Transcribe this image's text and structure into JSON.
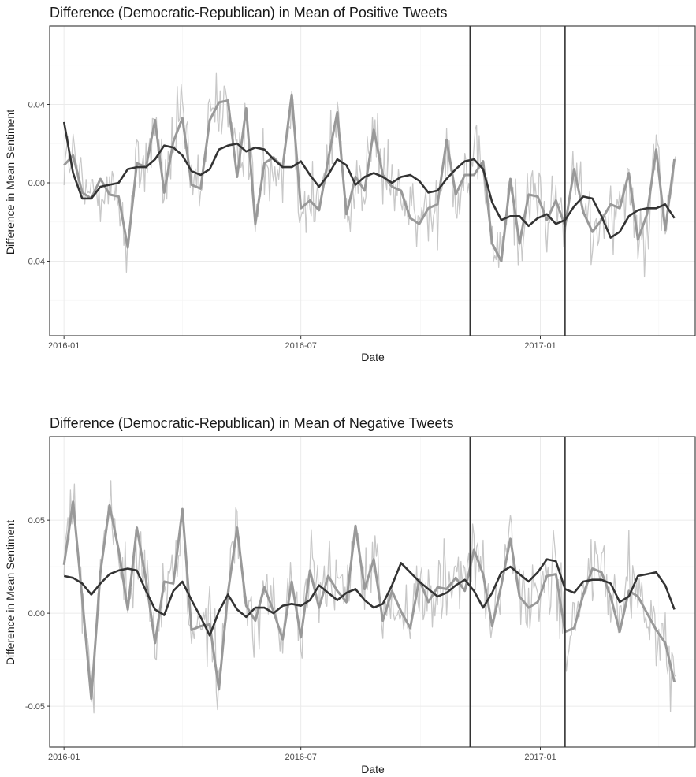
{
  "colors": {
    "daily": "#c8c8c8",
    "weekly": "#999999",
    "smooth": "#333333",
    "grid": "#ebebeb",
    "border": "#333333"
  },
  "chart_data": [
    {
      "type": "line",
      "title": "Difference (Democratic-Republican) in Mean of Positive Tweets",
      "xlabel": "Date",
      "ylabel": "Difference in Mean Sentiment",
      "xlim": [
        "2015-12-21",
        "2017-04-30"
      ],
      "ylim": [
        -0.078,
        0.08
      ],
      "x_ticks": [
        "2016-01-01",
        "2016-07-01",
        "2017-01-01"
      ],
      "x_tick_labels": [
        "2016-01",
        "2016-07",
        "2017-01"
      ],
      "y_ticks": [
        -0.04,
        0.0,
        0.04
      ],
      "y_tick_labels": [
        "-0.04",
        "0.00",
        "0.04"
      ],
      "vlines": [
        "2016-11-08",
        "2017-01-20"
      ],
      "grid": true,
      "series": [
        {
          "style": "daily",
          "start": "2016-01-01",
          "end": "2017-04-15",
          "y_range": [
            -0.07,
            0.072
          ]
        },
        {
          "style": "weekly",
          "x": [
            "2016-01-01",
            "2016-01-08",
            "2016-01-15",
            "2016-01-22",
            "2016-01-29",
            "2016-02-05",
            "2016-02-12",
            "2016-02-19",
            "2016-02-26",
            "2016-03-04",
            "2016-03-11",
            "2016-03-18",
            "2016-03-25",
            "2016-04-01",
            "2016-04-08",
            "2016-04-15",
            "2016-04-22",
            "2016-04-29",
            "2016-05-06",
            "2016-05-13",
            "2016-05-20",
            "2016-05-27",
            "2016-06-03",
            "2016-06-10",
            "2016-06-17",
            "2016-06-24",
            "2016-07-01",
            "2016-07-08",
            "2016-07-15",
            "2016-07-22",
            "2016-07-29",
            "2016-08-05",
            "2016-08-12",
            "2016-08-19",
            "2016-08-26",
            "2016-09-02",
            "2016-09-09",
            "2016-09-16",
            "2016-09-23",
            "2016-09-30",
            "2016-10-07",
            "2016-10-14",
            "2016-10-21",
            "2016-10-28",
            "2016-11-04",
            "2016-11-11",
            "2016-11-18",
            "2016-11-25",
            "2016-12-02",
            "2016-12-09",
            "2016-12-16",
            "2016-12-23",
            "2016-12-30",
            "2017-01-06",
            "2017-01-13",
            "2017-01-20",
            "2017-01-27",
            "2017-02-03",
            "2017-02-10",
            "2017-02-17",
            "2017-02-24",
            "2017-03-03",
            "2017-03-10",
            "2017-03-17",
            "2017-03-24",
            "2017-03-31",
            "2017-04-07",
            "2017-04-14"
          ],
          "y": [
            0.009,
            0.014,
            -0.005,
            -0.008,
            0.002,
            -0.006,
            -0.007,
            -0.033,
            0.01,
            0.008,
            0.032,
            -0.005,
            0.021,
            0.033,
            -0.001,
            -0.003,
            0.032,
            0.041,
            0.042,
            0.003,
            0.038,
            -0.021,
            0.01,
            0.013,
            0.008,
            0.045,
            -0.013,
            -0.009,
            -0.014,
            0.012,
            0.036,
            -0.016,
            0.003,
            -0.004,
            0.027,
            0.004,
            -0.002,
            -0.004,
            -0.018,
            -0.021,
            -0.013,
            -0.011,
            0.022,
            -0.006,
            0.004,
            0.004,
            0.011,
            -0.031,
            -0.04,
            0.002,
            -0.031,
            -0.006,
            -0.007,
            -0.019,
            -0.009,
            -0.022,
            0.007,
            -0.015,
            -0.025,
            -0.019,
            -0.011,
            -0.013,
            0.005,
            -0.029,
            -0.016,
            0.017,
            -0.024,
            0.012
          ]
        },
        {
          "style": "smooth",
          "x": [
            "2016-01-01",
            "2016-01-08",
            "2016-01-15",
            "2016-01-22",
            "2016-01-29",
            "2016-02-05",
            "2016-02-12",
            "2016-02-19",
            "2016-02-26",
            "2016-03-04",
            "2016-03-11",
            "2016-03-18",
            "2016-03-25",
            "2016-04-01",
            "2016-04-08",
            "2016-04-15",
            "2016-04-22",
            "2016-04-29",
            "2016-05-06",
            "2016-05-13",
            "2016-05-20",
            "2016-05-27",
            "2016-06-03",
            "2016-06-10",
            "2016-06-17",
            "2016-06-24",
            "2016-07-01",
            "2016-07-08",
            "2016-07-15",
            "2016-07-22",
            "2016-07-29",
            "2016-08-05",
            "2016-08-12",
            "2016-08-19",
            "2016-08-26",
            "2016-09-02",
            "2016-09-09",
            "2016-09-16",
            "2016-09-23",
            "2016-09-30",
            "2016-10-07",
            "2016-10-14",
            "2016-10-21",
            "2016-10-28",
            "2016-11-04",
            "2016-11-11",
            "2016-11-18",
            "2016-11-25",
            "2016-12-02",
            "2016-12-09",
            "2016-12-16",
            "2016-12-23",
            "2016-12-30",
            "2017-01-06",
            "2017-01-13",
            "2017-01-20",
            "2017-01-27",
            "2017-02-03",
            "2017-02-10",
            "2017-02-17",
            "2017-02-24",
            "2017-03-03",
            "2017-03-10",
            "2017-03-17",
            "2017-03-24",
            "2017-03-31",
            "2017-04-07",
            "2017-04-14"
          ],
          "y": [
            0.031,
            0.005,
            -0.008,
            -0.008,
            -0.002,
            -0.001,
            0.0,
            0.007,
            0.008,
            0.008,
            0.012,
            0.019,
            0.018,
            0.014,
            0.006,
            0.004,
            0.007,
            0.017,
            0.019,
            0.02,
            0.016,
            0.018,
            0.017,
            0.012,
            0.008,
            0.008,
            0.011,
            0.004,
            -0.002,
            0.004,
            0.012,
            0.009,
            -0.001,
            0.003,
            0.005,
            0.003,
            0.0,
            0.003,
            0.004,
            0.001,
            -0.005,
            -0.004,
            0.002,
            0.007,
            0.011,
            0.012,
            0.007,
            -0.01,
            -0.019,
            -0.017,
            -0.017,
            -0.022,
            -0.018,
            -0.016,
            -0.021,
            -0.019,
            -0.012,
            -0.007,
            -0.008,
            -0.017,
            -0.028,
            -0.025,
            -0.017,
            -0.014,
            -0.013,
            -0.013,
            -0.011,
            -0.018
          ]
        }
      ]
    },
    {
      "type": "line",
      "title": "Difference (Democratic-Republican) in Mean of Negative Tweets",
      "xlabel": "Date",
      "ylabel": "Difference in Mean Sentiment",
      "xlim": [
        "2015-12-21",
        "2017-04-30"
      ],
      "ylim": [
        -0.072,
        0.095
      ],
      "x_ticks": [
        "2016-01-01",
        "2016-07-01",
        "2017-01-01"
      ],
      "x_tick_labels": [
        "2016-01",
        "2016-07",
        "2017-01"
      ],
      "y_ticks": [
        -0.05,
        0.0,
        0.05
      ],
      "y_tick_labels": [
        "-0.05",
        "0.00",
        "0.05"
      ],
      "vlines": [
        "2016-11-08",
        "2017-01-20"
      ],
      "grid": true,
      "series": [
        {
          "style": "daily",
          "start": "2016-01-01",
          "end": "2017-04-15",
          "y_range": [
            -0.066,
            0.087
          ]
        },
        {
          "style": "weekly",
          "x": [
            "2016-01-01",
            "2016-01-08",
            "2016-01-15",
            "2016-01-22",
            "2016-01-29",
            "2016-02-05",
            "2016-02-12",
            "2016-02-19",
            "2016-02-26",
            "2016-03-04",
            "2016-03-11",
            "2016-03-18",
            "2016-03-25",
            "2016-04-01",
            "2016-04-08",
            "2016-04-15",
            "2016-04-22",
            "2016-04-29",
            "2016-05-06",
            "2016-05-13",
            "2016-05-20",
            "2016-05-27",
            "2016-06-03",
            "2016-06-10",
            "2016-06-17",
            "2016-06-24",
            "2016-07-01",
            "2016-07-08",
            "2016-07-15",
            "2016-07-22",
            "2016-07-29",
            "2016-08-05",
            "2016-08-12",
            "2016-08-19",
            "2016-08-26",
            "2016-09-02",
            "2016-09-09",
            "2016-09-16",
            "2016-09-23",
            "2016-09-30",
            "2016-10-07",
            "2016-10-14",
            "2016-10-21",
            "2016-10-28",
            "2016-11-04",
            "2016-11-11",
            "2016-11-18",
            "2016-11-25",
            "2016-12-02",
            "2016-12-09",
            "2016-12-16",
            "2016-12-23",
            "2016-12-30",
            "2017-01-06",
            "2017-01-13",
            "2017-01-20",
            "2017-01-27",
            "2017-02-03",
            "2017-02-10",
            "2017-02-17",
            "2017-02-24",
            "2017-03-03",
            "2017-03-10",
            "2017-03-17",
            "2017-03-24",
            "2017-03-31",
            "2017-04-07",
            "2017-04-14"
          ],
          "y": [
            0.026,
            0.06,
            0.008,
            -0.046,
            0.022,
            0.058,
            0.034,
            0.002,
            0.046,
            0.018,
            -0.016,
            0.017,
            0.016,
            0.056,
            -0.009,
            -0.007,
            -0.006,
            -0.041,
            0.011,
            0.046,
            0.004,
            -0.004,
            0.014,
            0.001,
            -0.014,
            0.017,
            -0.013,
            0.023,
            0.003,
            0.02,
            0.012,
            0.006,
            0.047,
            0.013,
            0.029,
            -0.004,
            0.012,
            0.001,
            -0.008,
            0.018,
            0.006,
            0.014,
            0.013,
            0.019,
            0.012,
            0.034,
            0.021,
            -0.007,
            0.015,
            0.04,
            0.009,
            0.003,
            0.006,
            0.02,
            0.021,
            -0.01,
            -0.008,
            0.01,
            0.024,
            0.022,
            0.009,
            -0.01,
            0.012,
            0.009,
            0.0,
            -0.009,
            -0.016,
            -0.037
          ]
        },
        {
          "style": "smooth",
          "x": [
            "2016-01-01",
            "2016-01-08",
            "2016-01-15",
            "2016-01-22",
            "2016-01-29",
            "2016-02-05",
            "2016-02-12",
            "2016-02-19",
            "2016-02-26",
            "2016-03-04",
            "2016-03-11",
            "2016-03-18",
            "2016-03-25",
            "2016-04-01",
            "2016-04-08",
            "2016-04-15",
            "2016-04-22",
            "2016-04-29",
            "2016-05-06",
            "2016-05-13",
            "2016-05-20",
            "2016-05-27",
            "2016-06-03",
            "2016-06-10",
            "2016-06-17",
            "2016-06-24",
            "2016-07-01",
            "2016-07-08",
            "2016-07-15",
            "2016-07-22",
            "2016-07-29",
            "2016-08-05",
            "2016-08-12",
            "2016-08-19",
            "2016-08-26",
            "2016-09-02",
            "2016-09-09",
            "2016-09-16",
            "2016-09-23",
            "2016-09-30",
            "2016-10-07",
            "2016-10-14",
            "2016-10-21",
            "2016-10-28",
            "2016-11-04",
            "2016-11-11",
            "2016-11-18",
            "2016-11-25",
            "2016-12-02",
            "2016-12-09",
            "2016-12-16",
            "2016-12-23",
            "2016-12-30",
            "2017-01-06",
            "2017-01-13",
            "2017-01-20",
            "2017-01-27",
            "2017-02-03",
            "2017-02-10",
            "2017-02-17",
            "2017-02-24",
            "2017-03-03",
            "2017-03-10",
            "2017-03-17",
            "2017-03-24",
            "2017-03-31",
            "2017-04-07",
            "2017-04-14"
          ],
          "y": [
            0.02,
            0.019,
            0.016,
            0.01,
            0.016,
            0.021,
            0.023,
            0.024,
            0.023,
            0.012,
            0.002,
            -0.001,
            0.012,
            0.017,
            0.007,
            -0.002,
            -0.012,
            0.001,
            0.01,
            0.002,
            -0.002,
            0.003,
            0.003,
            0.0,
            0.004,
            0.005,
            0.004,
            0.007,
            0.015,
            0.011,
            0.007,
            0.011,
            0.013,
            0.007,
            0.003,
            0.005,
            0.015,
            0.027,
            0.022,
            0.017,
            0.013,
            0.009,
            0.011,
            0.015,
            0.018,
            0.012,
            0.003,
            0.011,
            0.022,
            0.025,
            0.021,
            0.017,
            0.022,
            0.029,
            0.028,
            0.013,
            0.011,
            0.017,
            0.018,
            0.018,
            0.016,
            0.006,
            0.009,
            0.02,
            0.021,
            0.022,
            0.015,
            0.002
          ]
        }
      ]
    }
  ]
}
